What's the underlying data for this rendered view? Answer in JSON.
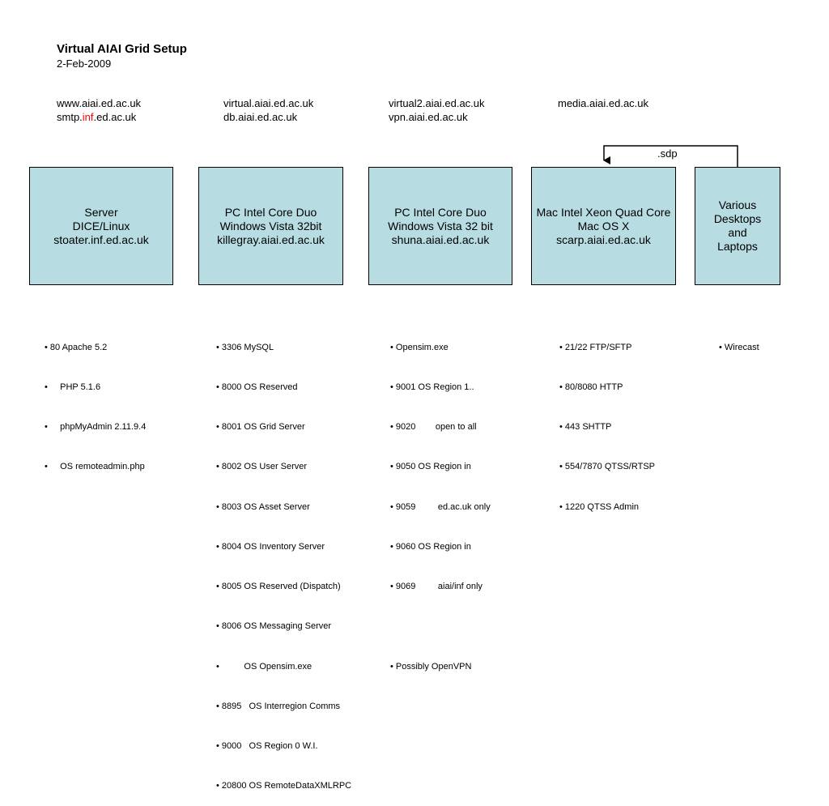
{
  "header": {
    "title": "Virtual AIAI Grid Setup",
    "date": "2-Feb-2009"
  },
  "hosts": [
    {
      "line1": "www.aiai.ed.ac.uk",
      "line2_pre": "smtp.",
      "line2_red": "inf",
      "line2_post": ".ed.ac.uk"
    },
    {
      "line1": "virtual.aiai.ed.ac.uk",
      "line2": "db.aiai.ed.ac.uk"
    },
    {
      "line1": "virtual2.aiai.ed.ac.uk",
      "line2": "vpn.aiai.ed.ac.uk"
    },
    {
      "line1": "media.aiai.ed.ac.uk"
    }
  ],
  "machines": [
    {
      "lines": [
        "Server",
        "DICE/Linux",
        "stoater.inf.ed.ac.uk"
      ]
    },
    {
      "lines": [
        "PC Intel Core Duo",
        "Windows Vista 32bit",
        "killegray.aiai.ed.ac.uk"
      ]
    },
    {
      "lines": [
        "PC Intel Core Duo",
        "Windows Vista 32 bit",
        "shuna.aiai.ed.ac.uk"
      ]
    },
    {
      "lines": [
        "Mac Intel Xeon Quad Core",
        "Mac OS X",
        "scarp.aiai.ed.ac.uk"
      ]
    },
    {
      "lines": [
        "Various",
        "Desktops",
        "and",
        "Laptops"
      ]
    }
  ],
  "connector": {
    "label": ".sdp"
  },
  "lists": [
    [
      "• 80 Apache 5.2",
      "•     PHP 5.1.6",
      "•     phpMyAdmin 2.11.9.4",
      "•     OS remoteadmin.php"
    ],
    [
      "• 3306 MySQL",
      "• 8000 OS Reserved",
      "• 8001 OS Grid Server",
      "• 8002 OS User Server",
      "• 8003 OS Asset Server",
      "• 8004 OS Inventory Server",
      "• 8005 OS Reserved (Dispatch)",
      "• 8006 OS Messaging Server",
      "•          OS Opensim.exe",
      "• 8895   OS Interregion Comms",
      "• 9000   OS Region 0 W.I.",
      "• 20800 OS RemoteDataXMLRPC"
    ],
    [
      "• Opensim.exe",
      "• 9001 OS Region 1..",
      "• 9020        open to all",
      "• 9050 OS Region in",
      "• 9059         ed.ac.uk only",
      "• 9060 OS Region in",
      "• 9069         aiai/inf only",
      "",
      "• Possibly OpenVPN"
    ],
    [
      "• 21/22 FTP/SFTP",
      "• 80/8080 HTTP",
      "• 443 SHTTP",
      "• 554/7870 QTSS/RTSP",
      "• 1220 QTSS Admin"
    ],
    [
      "• Wirecast"
    ]
  ]
}
